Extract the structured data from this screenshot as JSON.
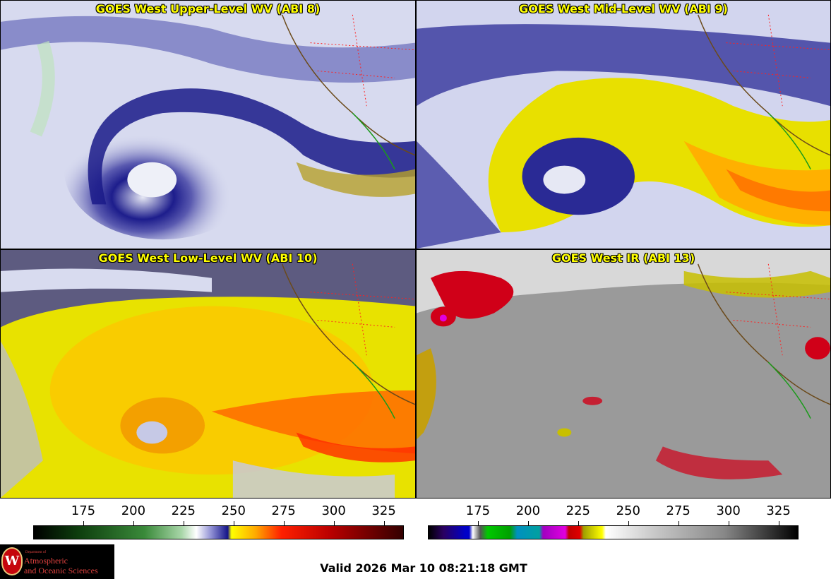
{
  "panels": [
    {
      "title": "GOES West Upper-Level WV (ABI 8)"
    },
    {
      "title": "GOES West Mid-Level WV (ABI 9)"
    },
    {
      "title": "GOES West Low-Level WV (ABI 10)"
    },
    {
      "title": "GOES West IR (ABI 13)"
    }
  ],
  "wv_scale": {
    "ticks": [
      "175",
      "200",
      "225",
      "250",
      "275",
      "300",
      "325"
    ],
    "range": [
      150,
      335
    ],
    "colors": [
      "#000000",
      "#0d3d0d",
      "#3a8a3a",
      "#9fd09f",
      "#ffffff",
      "#8a8ad0",
      "#15158a",
      "#ffff00",
      "#ff8800",
      "#ee0000",
      "#aa0000",
      "#330000"
    ]
  },
  "ir_scale": {
    "ticks": [
      "175",
      "200",
      "225",
      "250",
      "275",
      "300",
      "325"
    ],
    "range": [
      150,
      335
    ]
  },
  "valid_time": "Valid 2026 Mar 10 08:21:18 GMT",
  "logo": {
    "department": "Department of",
    "line1": "Atmospheric",
    "line2": "and Oceanic Sciences",
    "seal_letter": "W"
  }
}
